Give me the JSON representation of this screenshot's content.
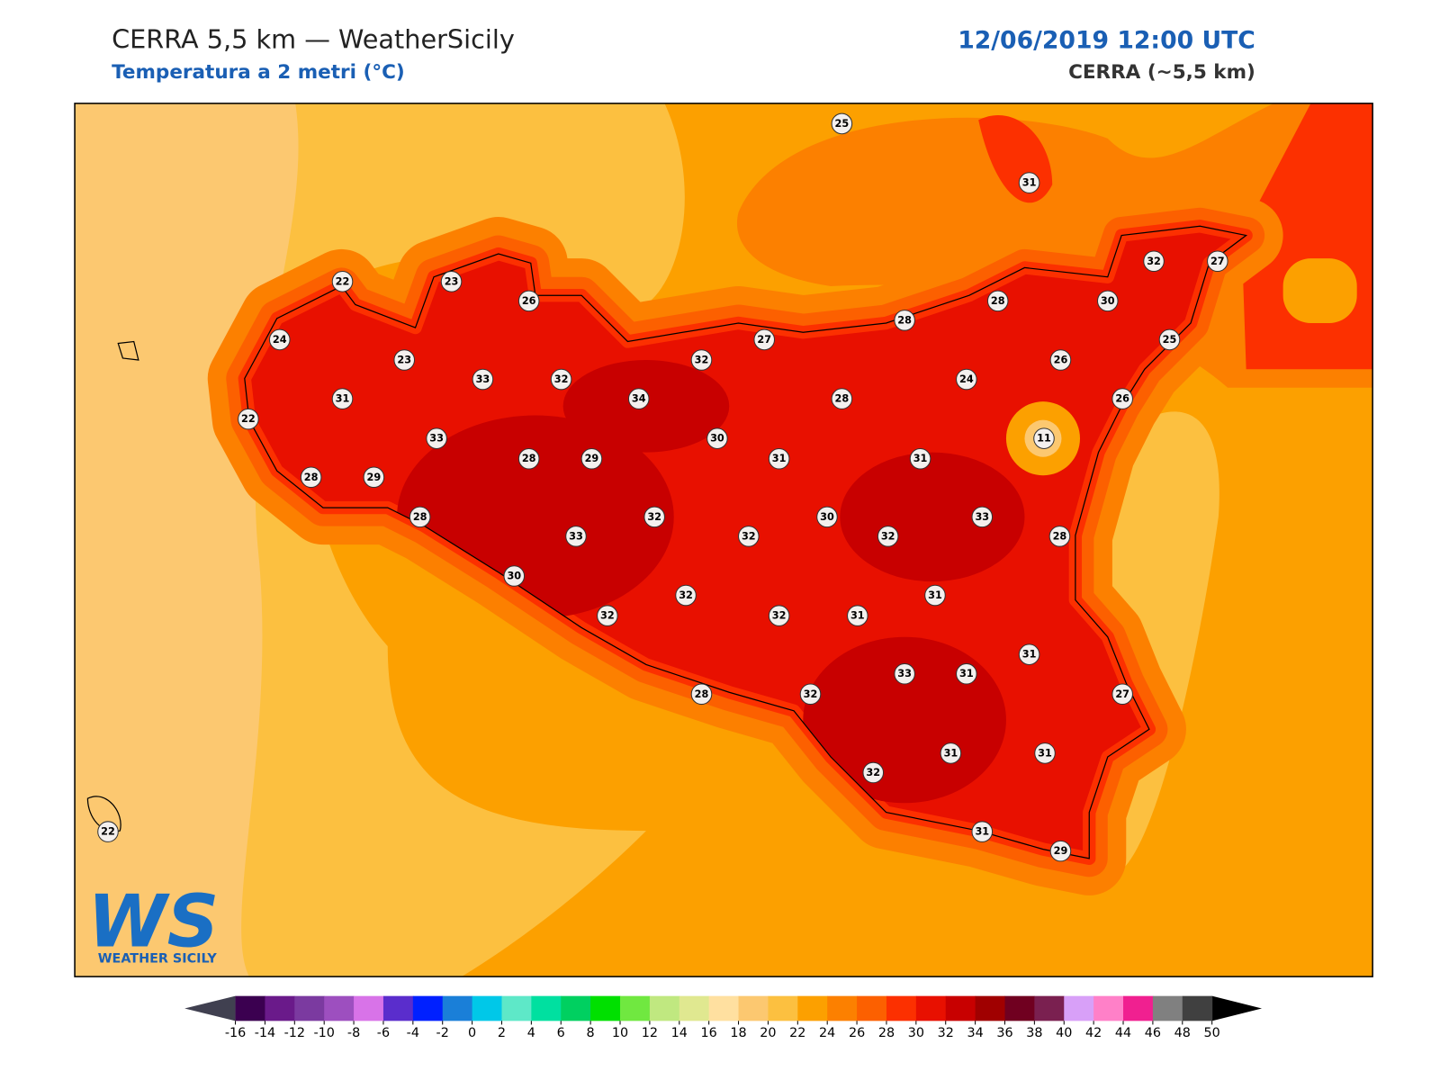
{
  "header": {
    "title": "CERRA 5,5 km — WeatherSicily",
    "subtitle": "Temperatura a 2 metri (°C)",
    "date": "12/06/2019 12:00 UTC",
    "model": "CERRA (~5,5 km)"
  },
  "stations": [
    25,
    31,
    22,
    23,
    26,
    24,
    23,
    33,
    32,
    32,
    27,
    28,
    28,
    30,
    32,
    27,
    25,
    26,
    24,
    26,
    31,
    22,
    33,
    34,
    28,
    30,
    11,
    28,
    29,
    28,
    29,
    31,
    31,
    28,
    32,
    30,
    33,
    33,
    32,
    32,
    28,
    30,
    32,
    31,
    32,
    32,
    31,
    31,
    33,
    31,
    27,
    28,
    32,
    32,
    31,
    31,
    31,
    29,
    22
  ],
  "colorbar": {
    "ticks": [
      -16,
      -14,
      -12,
      -10,
      -8,
      -6,
      -4,
      -2,
      0,
      2,
      4,
      6,
      8,
      10,
      12,
      14,
      16,
      18,
      20,
      22,
      24,
      26,
      28,
      30,
      32,
      34,
      36,
      38,
      40,
      42,
      44,
      46,
      48,
      50
    ],
    "colors": [
      "#3b0050",
      "#6a1a8a",
      "#7b3aa0",
      "#9d4fbf",
      "#d873e8",
      "#5a2dcc",
      "#0020ff",
      "#1a7fd8",
      "#00c8e8",
      "#5ee8c8",
      "#00e0a0",
      "#00d060",
      "#00e000",
      "#70e840",
      "#c0e880",
      "#e0e890",
      "#ffe0a0",
      "#fcc870",
      "#fcc040",
      "#fca000",
      "#fc8000",
      "#fc6000",
      "#fc3000",
      "#e81000",
      "#c80000",
      "#a00000",
      "#700020",
      "#7a2050",
      "#d8a0f8",
      "#ff80c8",
      "#f02090",
      "#808080",
      "#404040"
    ],
    "under": "#404050",
    "over": "#000000"
  },
  "logo": {
    "text": "WS",
    "caption": "WEATHER SICILY"
  }
}
